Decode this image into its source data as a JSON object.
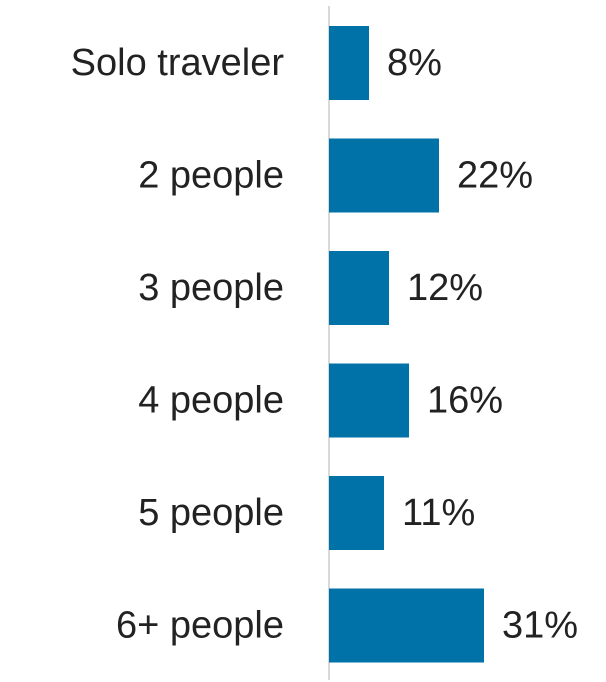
{
  "chart_data": {
    "type": "bar",
    "orientation": "horizontal",
    "categories": [
      "Solo traveler",
      "2 people",
      "3 people",
      "4 people",
      "5 people",
      "6+ people"
    ],
    "values": [
      8,
      22,
      12,
      16,
      11,
      31
    ],
    "value_labels": [
      "8%",
      "22%",
      "12%",
      "16%",
      "11%",
      "31%"
    ],
    "unit": "%",
    "title": "",
    "xlabel": "",
    "ylabel": "",
    "xlim": [
      0,
      50
    ],
    "grid": false,
    "legend": "none",
    "colors": {
      "bar": "#0072a8",
      "axis": "#d9d9d9",
      "text": "#222222"
    }
  }
}
